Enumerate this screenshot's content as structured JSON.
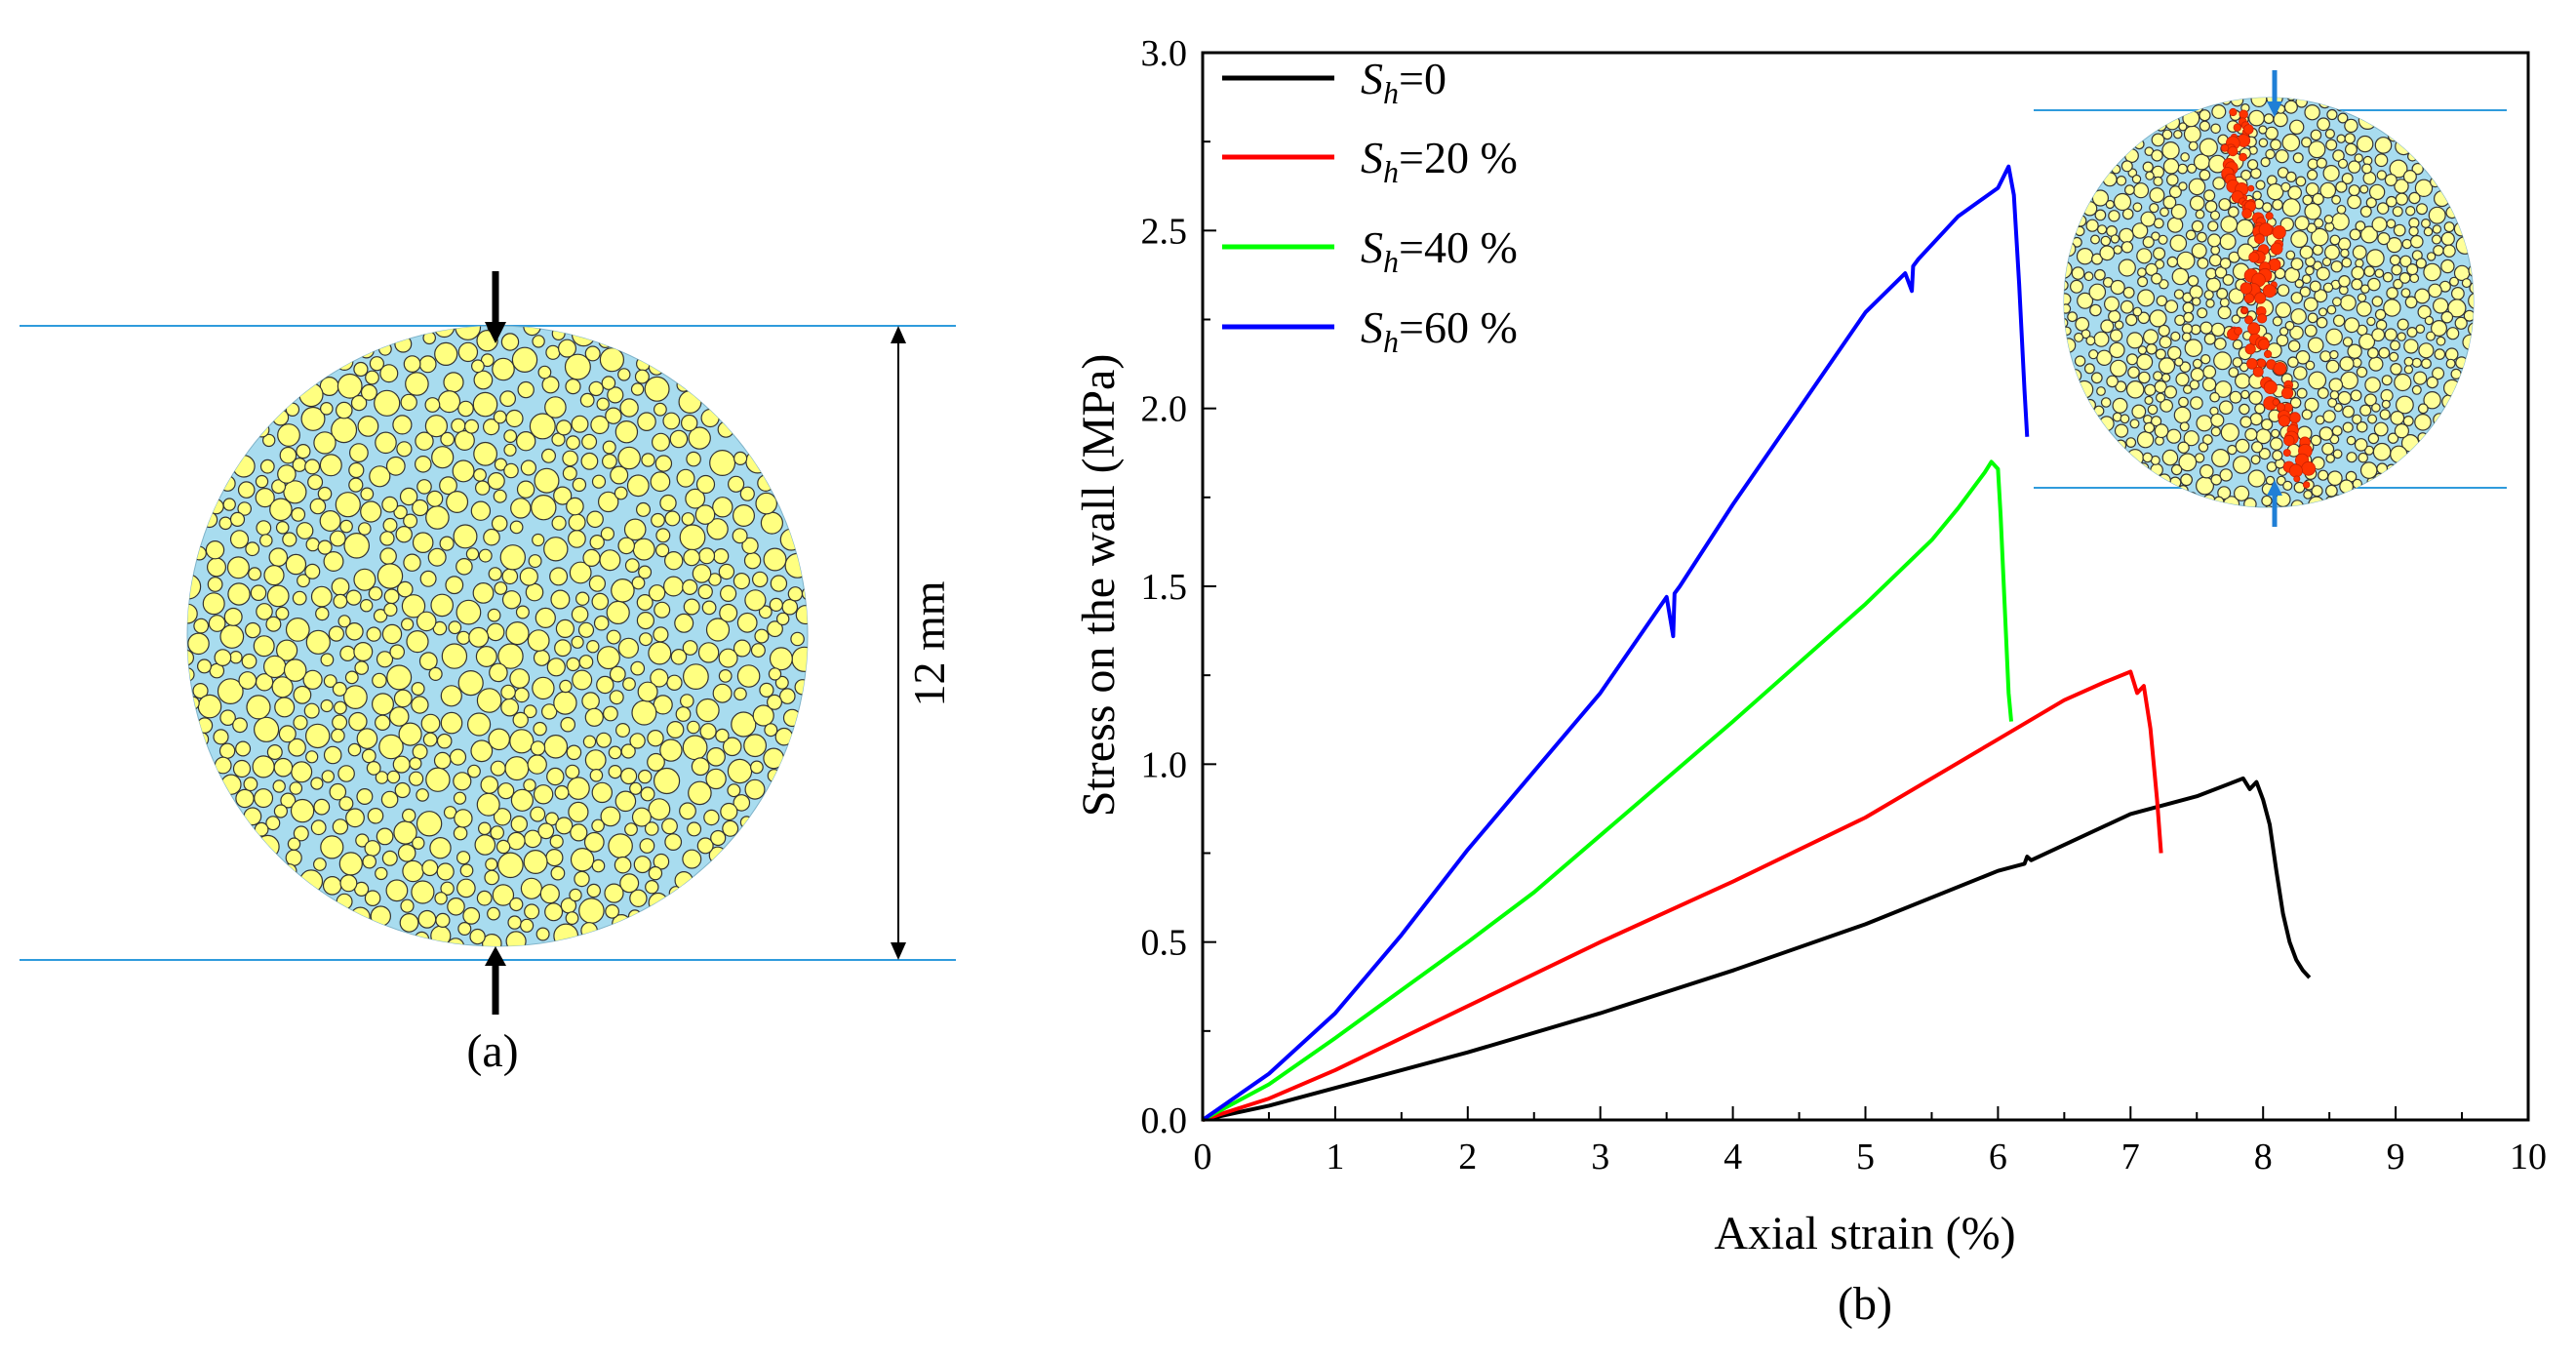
{
  "panel_a": {
    "caption": "(a)",
    "dimension_label": "12 mm",
    "particle_color": "#ffff80",
    "matrix_color": "#a8dcef",
    "boundary_color": "#2f9bdc",
    "arrow_color": "#000000"
  },
  "panel_b": {
    "caption": "(b)",
    "inset": {
      "particle_color": "#ffff99",
      "crack_color": "#ff3300",
      "arrow_color": "#1f7fd6"
    }
  },
  "chart_data": {
    "type": "line",
    "title": "",
    "xlabel": "Axial strain (%)",
    "ylabel": "Stress on the wall (MPa)",
    "xlim": [
      0,
      10
    ],
    "ylim": [
      0,
      3.0
    ],
    "xticks": [
      "0",
      "1",
      "2",
      "3",
      "4",
      "5",
      "6",
      "7",
      "8",
      "9",
      "10"
    ],
    "yticks": [
      "0.0",
      "0.5",
      "1.0",
      "1.5",
      "2.0",
      "2.5",
      "3.0"
    ],
    "legend_position": "top-left",
    "series": [
      {
        "name_var": "S",
        "name_sub": "h",
        "name_val": "=0",
        "color": "#000000",
        "x": [
          0,
          0.5,
          1,
          2,
          3,
          4,
          5,
          6,
          6.2,
          6.22,
          6.25,
          7,
          7.5,
          7.85,
          7.9,
          7.95,
          8.0,
          8.05,
          8.1,
          8.15,
          8.2,
          8.25,
          8.3,
          8.35
        ],
        "y": [
          0,
          0.04,
          0.09,
          0.19,
          0.3,
          0.42,
          0.55,
          0.7,
          0.72,
          0.74,
          0.73,
          0.86,
          0.91,
          0.96,
          0.93,
          0.95,
          0.9,
          0.83,
          0.7,
          0.58,
          0.5,
          0.45,
          0.42,
          0.4
        ]
      },
      {
        "name_var": "S",
        "name_sub": "h",
        "name_val": "=20 %",
        "color": "#ff0000",
        "x": [
          0,
          0.5,
          1,
          2,
          3,
          4,
          5,
          6,
          6.5,
          6.8,
          7.0,
          7.05,
          7.1,
          7.15,
          7.2,
          7.23
        ],
        "y": [
          0,
          0.06,
          0.14,
          0.32,
          0.5,
          0.67,
          0.85,
          1.07,
          1.18,
          1.23,
          1.26,
          1.2,
          1.22,
          1.1,
          0.9,
          0.75
        ]
      },
      {
        "name_var": "S",
        "name_sub": "h",
        "name_val": "=40 %",
        "color": "#00ff00",
        "x": [
          0,
          0.5,
          1,
          2,
          2.5,
          3,
          4,
          5,
          5.5,
          5.7,
          5.9,
          5.95,
          6.0,
          6.02,
          6.05,
          6.08,
          6.1
        ],
        "y": [
          0,
          0.1,
          0.23,
          0.5,
          0.64,
          0.8,
          1.12,
          1.45,
          1.63,
          1.72,
          1.82,
          1.85,
          1.83,
          1.7,
          1.45,
          1.2,
          1.12
        ]
      },
      {
        "name_var": "S",
        "name_sub": "h",
        "name_val": "=60 %",
        "color": "#0000ff",
        "x": [
          0,
          0.5,
          1,
          1.5,
          2,
          2.5,
          3,
          3.5,
          3.55,
          3.56,
          3.6,
          4,
          4.5,
          5,
          5.3,
          5.35,
          5.36,
          5.4,
          5.7,
          6.0,
          6.08,
          6.12,
          6.16,
          6.2,
          6.22
        ],
        "y": [
          0,
          0.13,
          0.3,
          0.52,
          0.76,
          0.98,
          1.2,
          1.47,
          1.36,
          1.48,
          1.5,
          1.73,
          2.0,
          2.27,
          2.38,
          2.33,
          2.4,
          2.42,
          2.54,
          2.62,
          2.68,
          2.6,
          2.35,
          2.05,
          1.92
        ]
      }
    ]
  }
}
